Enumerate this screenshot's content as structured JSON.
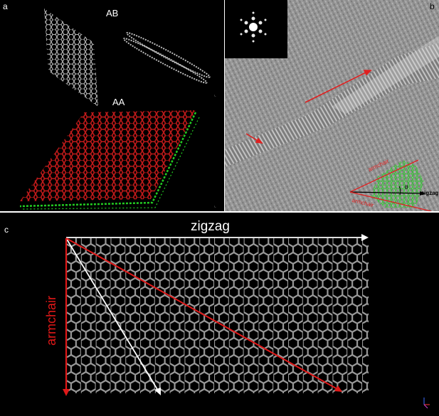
{
  "figure": {
    "panel_a": {
      "letter": "a",
      "ab_label": "AB",
      "aa_label": "AA",
      "colors": {
        "aa_layer": "#c21a1a",
        "aa_edge": "#22cc22",
        "lattice": "#bdbdbd"
      }
    },
    "panel_b": {
      "letter": "b",
      "armchair_label_1": "armchair",
      "armchair_label_2": "armchair",
      "zigzag_label": "zigzag",
      "theta_label": "θ",
      "colors": {
        "arrow": "#e02020",
        "overlay": "#33d433"
      }
    },
    "panel_c": {
      "letter": "c",
      "zigzag_label": "zigzag",
      "armchair_label": "armchair",
      "colors": {
        "armchair": "#e01818",
        "zigzag": "#ffffff",
        "lattice": "#9a9a9a"
      }
    }
  }
}
